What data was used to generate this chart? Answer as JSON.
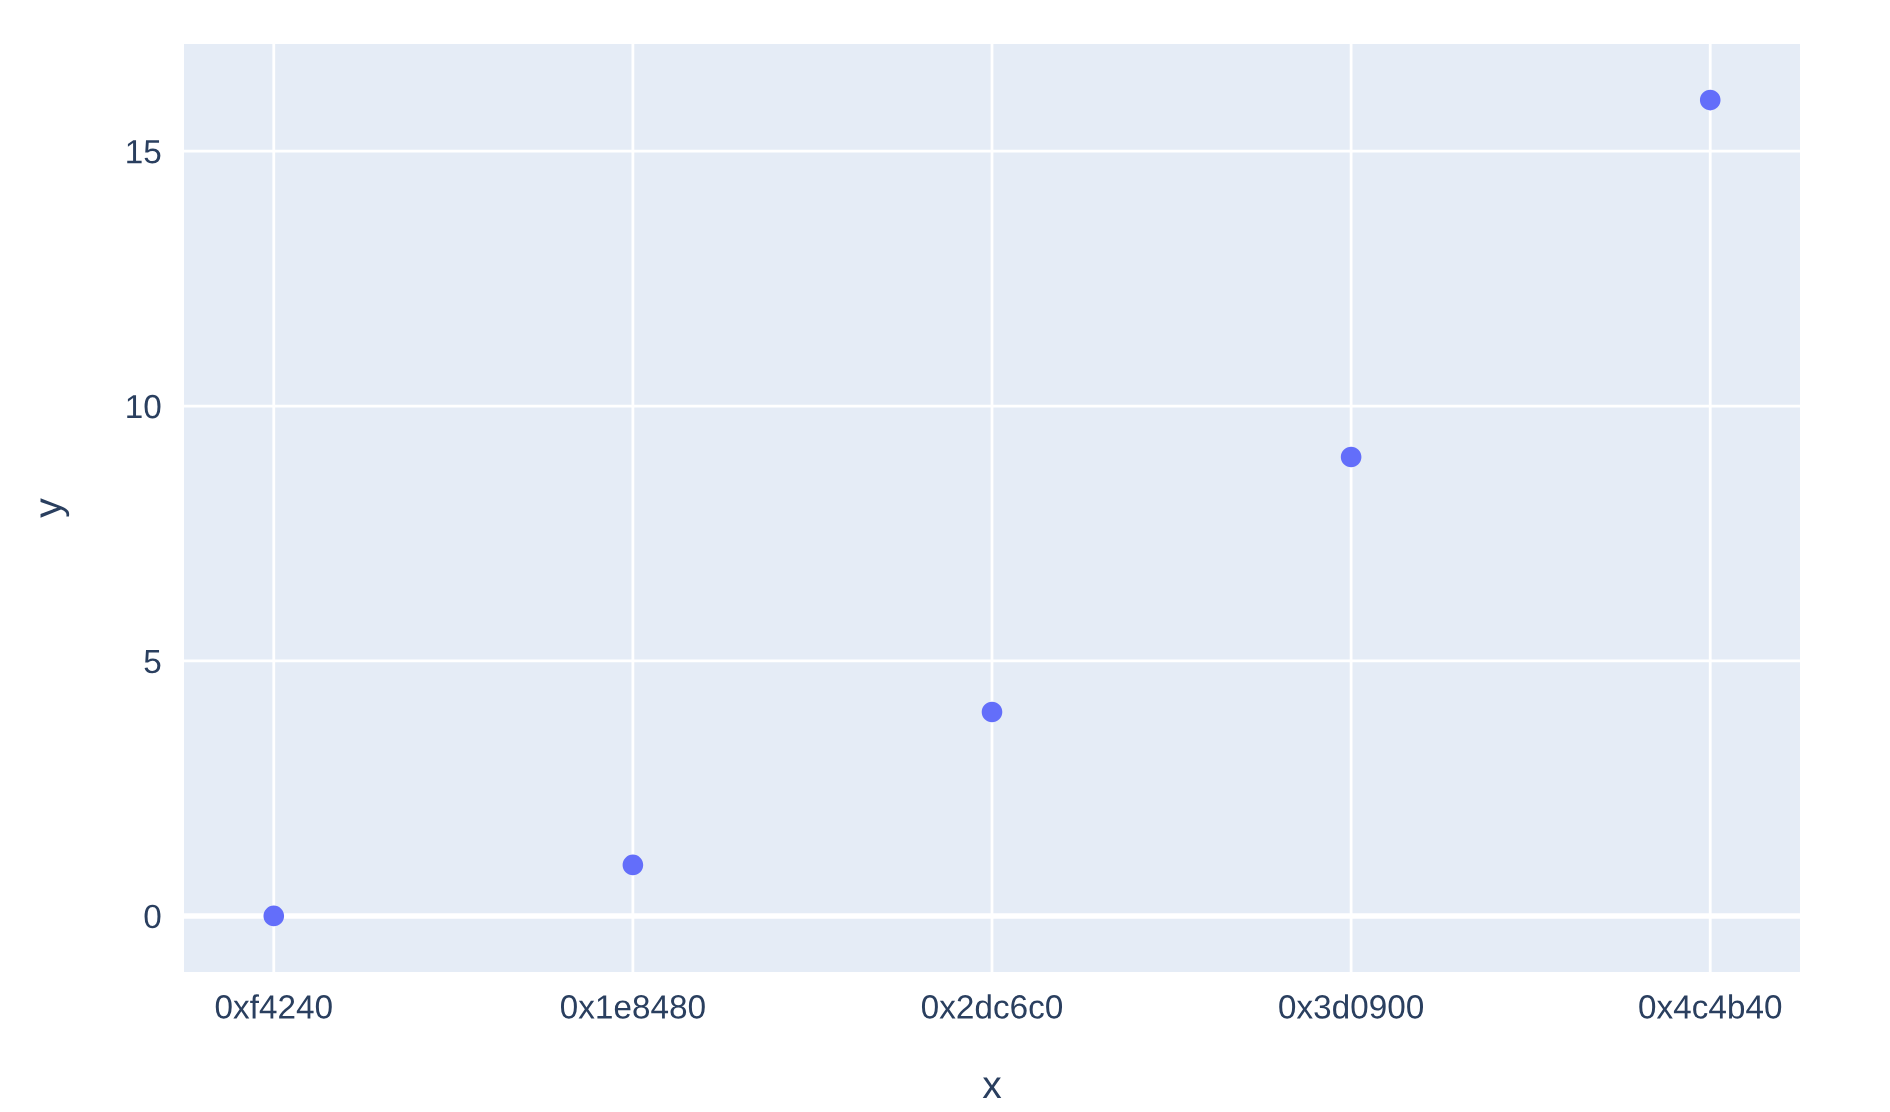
{
  "chart_data": {
    "type": "scatter",
    "xlabel": "x",
    "ylabel": "y",
    "categories": [
      "0xf4240",
      "0x1e8480",
      "0x2dc6c0",
      "0x3d0900",
      "0x4c4b40"
    ],
    "series": [
      {
        "color": "#636efa",
        "values": [
          0,
          1,
          4,
          9,
          16
        ]
      }
    ],
    "ylim": [
      -1.1,
      17.1
    ],
    "yticks": [
      0,
      5,
      10,
      15
    ],
    "grid": true,
    "marker": "circle",
    "legend": false
  }
}
